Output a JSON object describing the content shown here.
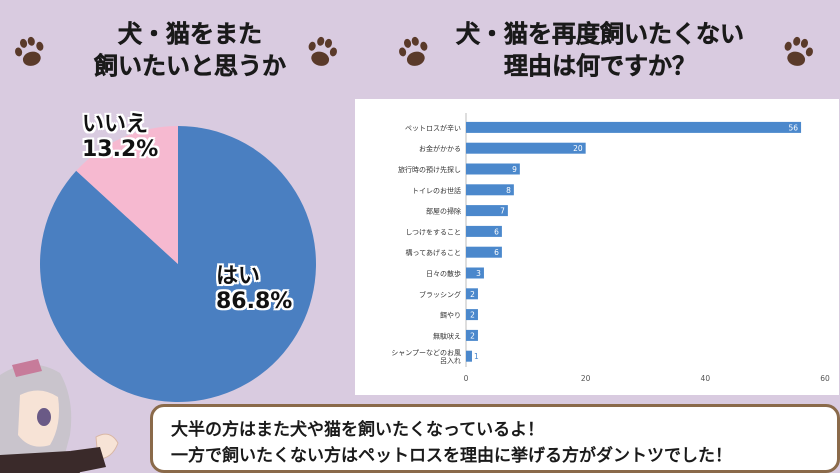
{
  "left_title": {
    "line1": "犬・猫をまた",
    "line2": "飼いたいと思うか"
  },
  "right_title": {
    "line1": "犬・猫を再度飼いたくない",
    "line2": "理由は何ですか？"
  },
  "colors": {
    "pie_yes": "#4a7fc1",
    "pie_no": "#f6b9d0",
    "bar": "#4b88cc",
    "background": "#d9cbe0",
    "paw": "#5a3a2a"
  },
  "pie_labels": {
    "no_label": "いいえ",
    "no_value": "13.2%",
    "yes_label": "はい",
    "yes_value": "86.8%"
  },
  "speech": {
    "line1": "大半の方はまた犬や猫を飼いたくなっているよ！",
    "line2": "一方で飼いたくない方はペットロスを理由に挙げる方がダントツでした！"
  },
  "chart_data": [
    {
      "type": "pie",
      "categories": [
        "はい",
        "いいえ"
      ],
      "values": [
        86.8,
        13.2
      ],
      "title": "犬・猫をまた飼いたいと思うか"
    },
    {
      "type": "bar",
      "orientation": "horizontal",
      "title": "犬・猫を再度飼いたくない理由は何ですか？",
      "categories": [
        "ペットロスが辛い",
        "お金がかかる",
        "旅行時の預け先探し",
        "トイレのお世話",
        "部屋の掃除",
        "しつけをすること",
        "構ってあげること",
        "日々の散歩",
        "ブラッシング",
        "餌やり",
        "無駄吠え",
        "シャンプーなどのお風呂入れ"
      ],
      "values": [
        56,
        20,
        9,
        8,
        7,
        6,
        6,
        3,
        2,
        2,
        2,
        1
      ],
      "xlim": [
        0,
        60
      ],
      "xticks": [
        0,
        20,
        40,
        60
      ],
      "grid": false
    }
  ]
}
